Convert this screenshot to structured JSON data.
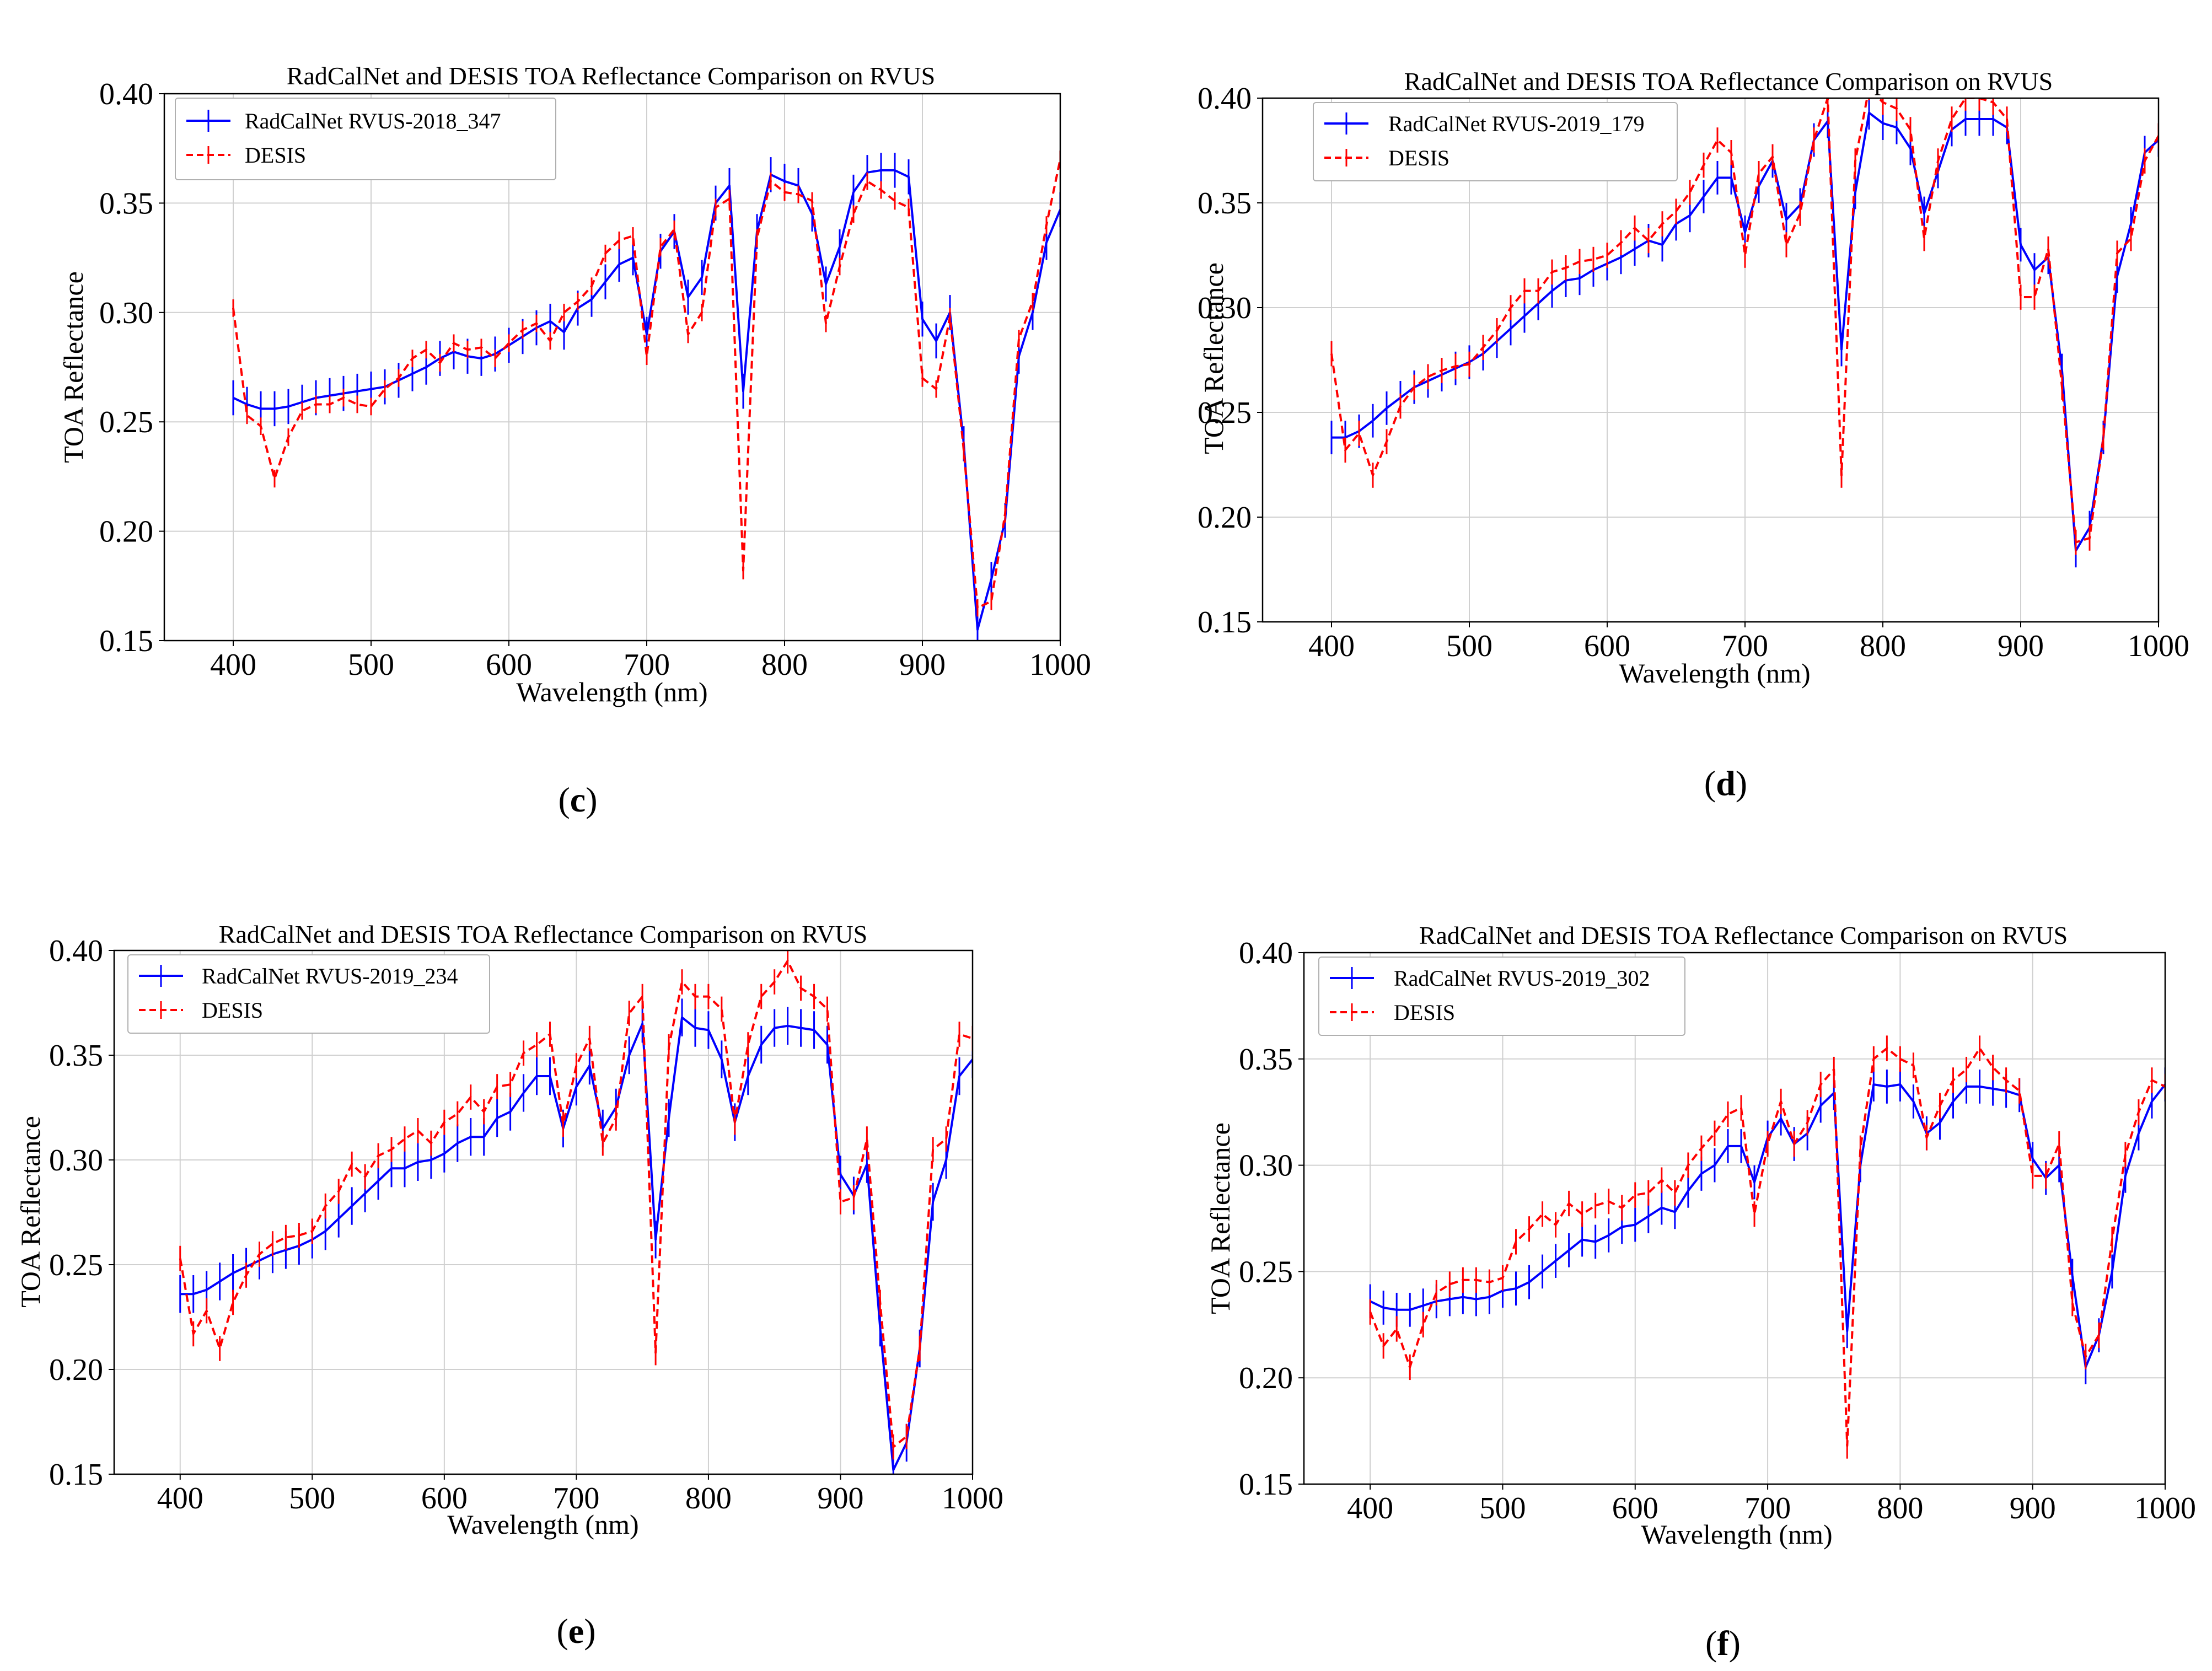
{
  "colors": {
    "radcalnet": "#0000ff",
    "desis": "#ff0000"
  },
  "chart_data": [
    {
      "type": "line",
      "panel": "(c)",
      "caption_letter": "c",
      "title": "RadCalNet and DESIS TOA Reflectance Comparison on RVUS",
      "xlabel": "Wavelength (nm)",
      "ylabel": "TOA Reflectance",
      "xlim": [
        350,
        1000
      ],
      "ylim": [
        0.15,
        0.4
      ],
      "xticks": [
        "400",
        "500",
        "600",
        "700",
        "800",
        "900",
        "1000"
      ],
      "yticks": [
        "0.15",
        "0.20",
        "0.25",
        "0.30",
        "0.35",
        "0.40"
      ],
      "x": [
        400,
        410,
        420,
        430,
        440,
        450,
        460,
        470,
        480,
        490,
        500,
        510,
        520,
        530,
        540,
        550,
        560,
        570,
        580,
        590,
        600,
        610,
        620,
        630,
        640,
        650,
        660,
        670,
        680,
        690,
        700,
        710,
        720,
        730,
        740,
        750,
        760,
        770,
        780,
        790,
        800,
        810,
        820,
        830,
        840,
        850,
        860,
        870,
        880,
        890,
        900,
        910,
        920,
        930,
        940,
        950,
        960,
        970,
        980,
        990,
        1000
      ],
      "series": [
        {
          "name": "RadCalNet RVUS-2018_347",
          "style": "solid",
          "error": 0.008,
          "values": [
            0.261,
            0.258,
            0.256,
            0.256,
            0.257,
            0.259,
            0.261,
            0.262,
            0.263,
            0.264,
            0.265,
            0.266,
            0.269,
            0.272,
            0.275,
            0.279,
            0.282,
            0.28,
            0.279,
            0.281,
            0.285,
            0.289,
            0.293,
            0.296,
            0.291,
            0.302,
            0.306,
            0.314,
            0.322,
            0.325,
            0.29,
            0.328,
            0.337,
            0.307,
            0.316,
            0.35,
            0.358,
            0.264,
            0.337,
            0.363,
            0.36,
            0.358,
            0.345,
            0.313,
            0.33,
            0.355,
            0.364,
            0.365,
            0.365,
            0.362,
            0.297,
            0.287,
            0.3,
            0.24,
            0.155,
            0.178,
            0.205,
            0.28,
            0.3,
            0.332,
            0.347
          ]
        },
        {
          "name": "DESIS",
          "style": "dashed",
          "error": 0.004,
          "values": [
            0.302,
            0.253,
            0.248,
            0.224,
            0.243,
            0.255,
            0.258,
            0.258,
            0.261,
            0.258,
            0.257,
            0.265,
            0.27,
            0.279,
            0.283,
            0.277,
            0.286,
            0.283,
            0.284,
            0.279,
            0.286,
            0.292,
            0.295,
            0.287,
            0.3,
            0.305,
            0.312,
            0.327,
            0.333,
            0.335,
            0.28,
            0.33,
            0.338,
            0.29,
            0.3,
            0.348,
            0.352,
            0.182,
            0.334,
            0.36,
            0.355,
            0.354,
            0.351,
            0.295,
            0.321,
            0.345,
            0.36,
            0.356,
            0.351,
            0.348,
            0.27,
            0.265,
            0.298,
            0.237,
            0.165,
            0.168,
            0.208,
            0.288,
            0.305,
            0.34,
            0.37
          ]
        }
      ]
    },
    {
      "type": "line",
      "panel": "(d)",
      "caption_letter": "d",
      "title": "RadCalNet and DESIS TOA Reflectance Comparison on RVUS",
      "xlabel": "Wavelength (nm)",
      "ylabel": "TOA Reflectance",
      "xlim": [
        350,
        1000
      ],
      "ylim": [
        0.15,
        0.4
      ],
      "xticks": [
        "400",
        "500",
        "600",
        "700",
        "800",
        "900",
        "1000"
      ],
      "yticks": [
        "0.15",
        "0.20",
        "0.25",
        "0.30",
        "0.35",
        "0.40"
      ],
      "x": [
        400,
        410,
        420,
        430,
        440,
        450,
        460,
        470,
        480,
        490,
        500,
        510,
        520,
        530,
        540,
        550,
        560,
        570,
        580,
        590,
        600,
        610,
        620,
        630,
        640,
        650,
        660,
        670,
        680,
        690,
        700,
        710,
        720,
        730,
        740,
        750,
        760,
        770,
        780,
        790,
        800,
        810,
        820,
        830,
        840,
        850,
        860,
        870,
        880,
        890,
        900,
        910,
        920,
        930,
        940,
        950,
        960,
        970,
        980,
        990,
        1000
      ],
      "series": [
        {
          "name": "RadCalNet RVUS-2019_179",
          "style": "solid",
          "error": 0.008,
          "values": [
            0.238,
            0.238,
            0.241,
            0.246,
            0.252,
            0.257,
            0.262,
            0.265,
            0.268,
            0.271,
            0.274,
            0.278,
            0.284,
            0.29,
            0.296,
            0.302,
            0.308,
            0.313,
            0.314,
            0.318,
            0.321,
            0.324,
            0.328,
            0.332,
            0.33,
            0.34,
            0.344,
            0.353,
            0.362,
            0.362,
            0.336,
            0.358,
            0.37,
            0.342,
            0.349,
            0.38,
            0.389,
            0.28,
            0.355,
            0.393,
            0.388,
            0.386,
            0.376,
            0.345,
            0.365,
            0.385,
            0.39,
            0.39,
            0.39,
            0.386,
            0.33,
            0.318,
            0.324,
            0.27,
            0.184,
            0.195,
            0.238,
            0.315,
            0.34,
            0.374,
            0.38
          ]
        },
        {
          "name": "DESIS",
          "style": "dashed",
          "error": 0.006,
          "values": [
            0.278,
            0.232,
            0.24,
            0.22,
            0.236,
            0.253,
            0.262,
            0.267,
            0.27,
            0.272,
            0.273,
            0.281,
            0.289,
            0.3,
            0.308,
            0.308,
            0.317,
            0.319,
            0.322,
            0.323,
            0.325,
            0.331,
            0.338,
            0.332,
            0.34,
            0.346,
            0.355,
            0.368,
            0.38,
            0.374,
            0.325,
            0.364,
            0.372,
            0.33,
            0.345,
            0.38,
            0.4,
            0.22,
            0.37,
            0.405,
            0.398,
            0.395,
            0.385,
            0.333,
            0.37,
            0.39,
            0.4,
            0.4,
            0.398,
            0.39,
            0.305,
            0.305,
            0.328,
            0.262,
            0.188,
            0.19,
            0.238,
            0.326,
            0.333,
            0.37,
            0.382
          ]
        }
      ]
    },
    {
      "type": "line",
      "panel": "(e)",
      "caption_letter": "e",
      "title": "RadCalNet and DESIS TOA Reflectance Comparison on RVUS",
      "xlabel": "Wavelength (nm)",
      "ylabel": "TOA Reflectance",
      "xlim": [
        350,
        1000
      ],
      "ylim": [
        0.15,
        0.4
      ],
      "xticks": [
        "400",
        "500",
        "600",
        "700",
        "800",
        "900",
        "1000"
      ],
      "yticks": [
        "0.15",
        "0.20",
        "0.25",
        "0.30",
        "0.35",
        "0.40"
      ],
      "x": [
        400,
        410,
        420,
        430,
        440,
        450,
        460,
        470,
        480,
        490,
        500,
        510,
        520,
        530,
        540,
        550,
        560,
        570,
        580,
        590,
        600,
        610,
        620,
        630,
        640,
        650,
        660,
        670,
        680,
        690,
        700,
        710,
        720,
        730,
        740,
        750,
        760,
        770,
        780,
        790,
        800,
        810,
        820,
        830,
        840,
        850,
        860,
        870,
        880,
        890,
        900,
        910,
        920,
        930,
        940,
        950,
        960,
        970,
        980,
        990,
        1000
      ],
      "series": [
        {
          "name": "RadCalNet RVUS-2019_234",
          "style": "solid",
          "error": 0.009,
          "values": [
            0.236,
            0.236,
            0.238,
            0.242,
            0.246,
            0.249,
            0.252,
            0.255,
            0.257,
            0.259,
            0.262,
            0.266,
            0.272,
            0.278,
            0.284,
            0.29,
            0.296,
            0.296,
            0.299,
            0.3,
            0.303,
            0.308,
            0.311,
            0.311,
            0.32,
            0.323,
            0.332,
            0.34,
            0.34,
            0.315,
            0.335,
            0.345,
            0.315,
            0.325,
            0.35,
            0.365,
            0.262,
            0.32,
            0.368,
            0.363,
            0.362,
            0.348,
            0.318,
            0.34,
            0.355,
            0.363,
            0.364,
            0.363,
            0.362,
            0.355,
            0.293,
            0.283,
            0.298,
            0.22,
            0.152,
            0.165,
            0.21,
            0.28,
            0.3,
            0.34,
            0.348
          ]
        },
        {
          "name": "DESIS",
          "style": "dashed",
          "error": 0.006,
          "values": [
            0.253,
            0.217,
            0.228,
            0.21,
            0.232,
            0.245,
            0.255,
            0.26,
            0.263,
            0.264,
            0.266,
            0.278,
            0.285,
            0.298,
            0.292,
            0.302,
            0.305,
            0.31,
            0.314,
            0.308,
            0.318,
            0.322,
            0.33,
            0.323,
            0.335,
            0.336,
            0.351,
            0.355,
            0.36,
            0.317,
            0.345,
            0.358,
            0.308,
            0.32,
            0.37,
            0.378,
            0.208,
            0.354,
            0.385,
            0.378,
            0.378,
            0.372,
            0.318,
            0.355,
            0.378,
            0.385,
            0.395,
            0.382,
            0.378,
            0.372,
            0.28,
            0.282,
            0.31,
            0.232,
            0.163,
            0.168,
            0.21,
            0.305,
            0.31,
            0.36,
            0.358
          ]
        }
      ]
    },
    {
      "type": "line",
      "panel": "(f)",
      "caption_letter": "f",
      "title": "RadCalNet and DESIS TOA Reflectance Comparison on RVUS",
      "xlabel": "Wavelength (nm)",
      "ylabel": "TOA Reflectance",
      "xlim": [
        350,
        1000
      ],
      "ylim": [
        0.15,
        0.4
      ],
      "xticks": [
        "400",
        "500",
        "600",
        "700",
        "800",
        "900",
        "1000"
      ],
      "yticks": [
        "0.15",
        "0.20",
        "0.25",
        "0.30",
        "0.35",
        "0.40"
      ],
      "x": [
        400,
        410,
        420,
        430,
        440,
        450,
        460,
        470,
        480,
        490,
        500,
        510,
        520,
        530,
        540,
        550,
        560,
        570,
        580,
        590,
        600,
        610,
        620,
        630,
        640,
        650,
        660,
        670,
        680,
        690,
        700,
        710,
        720,
        730,
        740,
        750,
        760,
        770,
        780,
        790,
        800,
        810,
        820,
        830,
        840,
        850,
        860,
        870,
        880,
        890,
        900,
        910,
        920,
        930,
        940,
        950,
        960,
        970,
        980,
        990,
        1000
      ],
      "series": [
        {
          "name": "RadCalNet RVUS-2019_302",
          "style": "solid",
          "error": 0.008,
          "values": [
            0.236,
            0.233,
            0.232,
            0.232,
            0.234,
            0.236,
            0.237,
            0.238,
            0.237,
            0.238,
            0.241,
            0.242,
            0.245,
            0.25,
            0.255,
            0.26,
            0.265,
            0.264,
            0.267,
            0.271,
            0.272,
            0.276,
            0.28,
            0.278,
            0.288,
            0.296,
            0.3,
            0.309,
            0.309,
            0.292,
            0.313,
            0.322,
            0.31,
            0.315,
            0.328,
            0.334,
            0.222,
            0.3,
            0.338,
            0.337,
            0.338,
            0.33,
            0.315,
            0.32,
            0.33,
            0.337,
            0.337,
            0.336,
            0.335,
            0.333,
            0.303,
            0.294,
            0.3,
            0.248,
            0.205,
            0.22,
            0.25,
            0.295,
            0.315,
            0.33,
            0.338
          ]
        },
        {
          "name": "DESIS",
          "style": "dashed",
          "error": 0.006,
          "values": [
            0.231,
            0.215,
            0.223,
            0.205,
            0.225,
            0.24,
            0.244,
            0.246,
            0.246,
            0.245,
            0.247,
            0.264,
            0.27,
            0.277,
            0.272,
            0.282,
            0.277,
            0.281,
            0.283,
            0.28,
            0.286,
            0.287,
            0.293,
            0.287,
            0.3,
            0.308,
            0.315,
            0.324,
            0.327,
            0.277,
            0.31,
            0.33,
            0.31,
            0.32,
            0.338,
            0.345,
            0.168,
            0.308,
            0.35,
            0.355,
            0.35,
            0.347,
            0.313,
            0.328,
            0.34,
            0.345,
            0.355,
            0.346,
            0.34,
            0.335,
            0.295,
            0.295,
            0.31,
            0.235,
            0.21,
            0.22,
            0.265,
            0.305,
            0.325,
            0.34,
            0.337
          ]
        }
      ]
    }
  ]
}
